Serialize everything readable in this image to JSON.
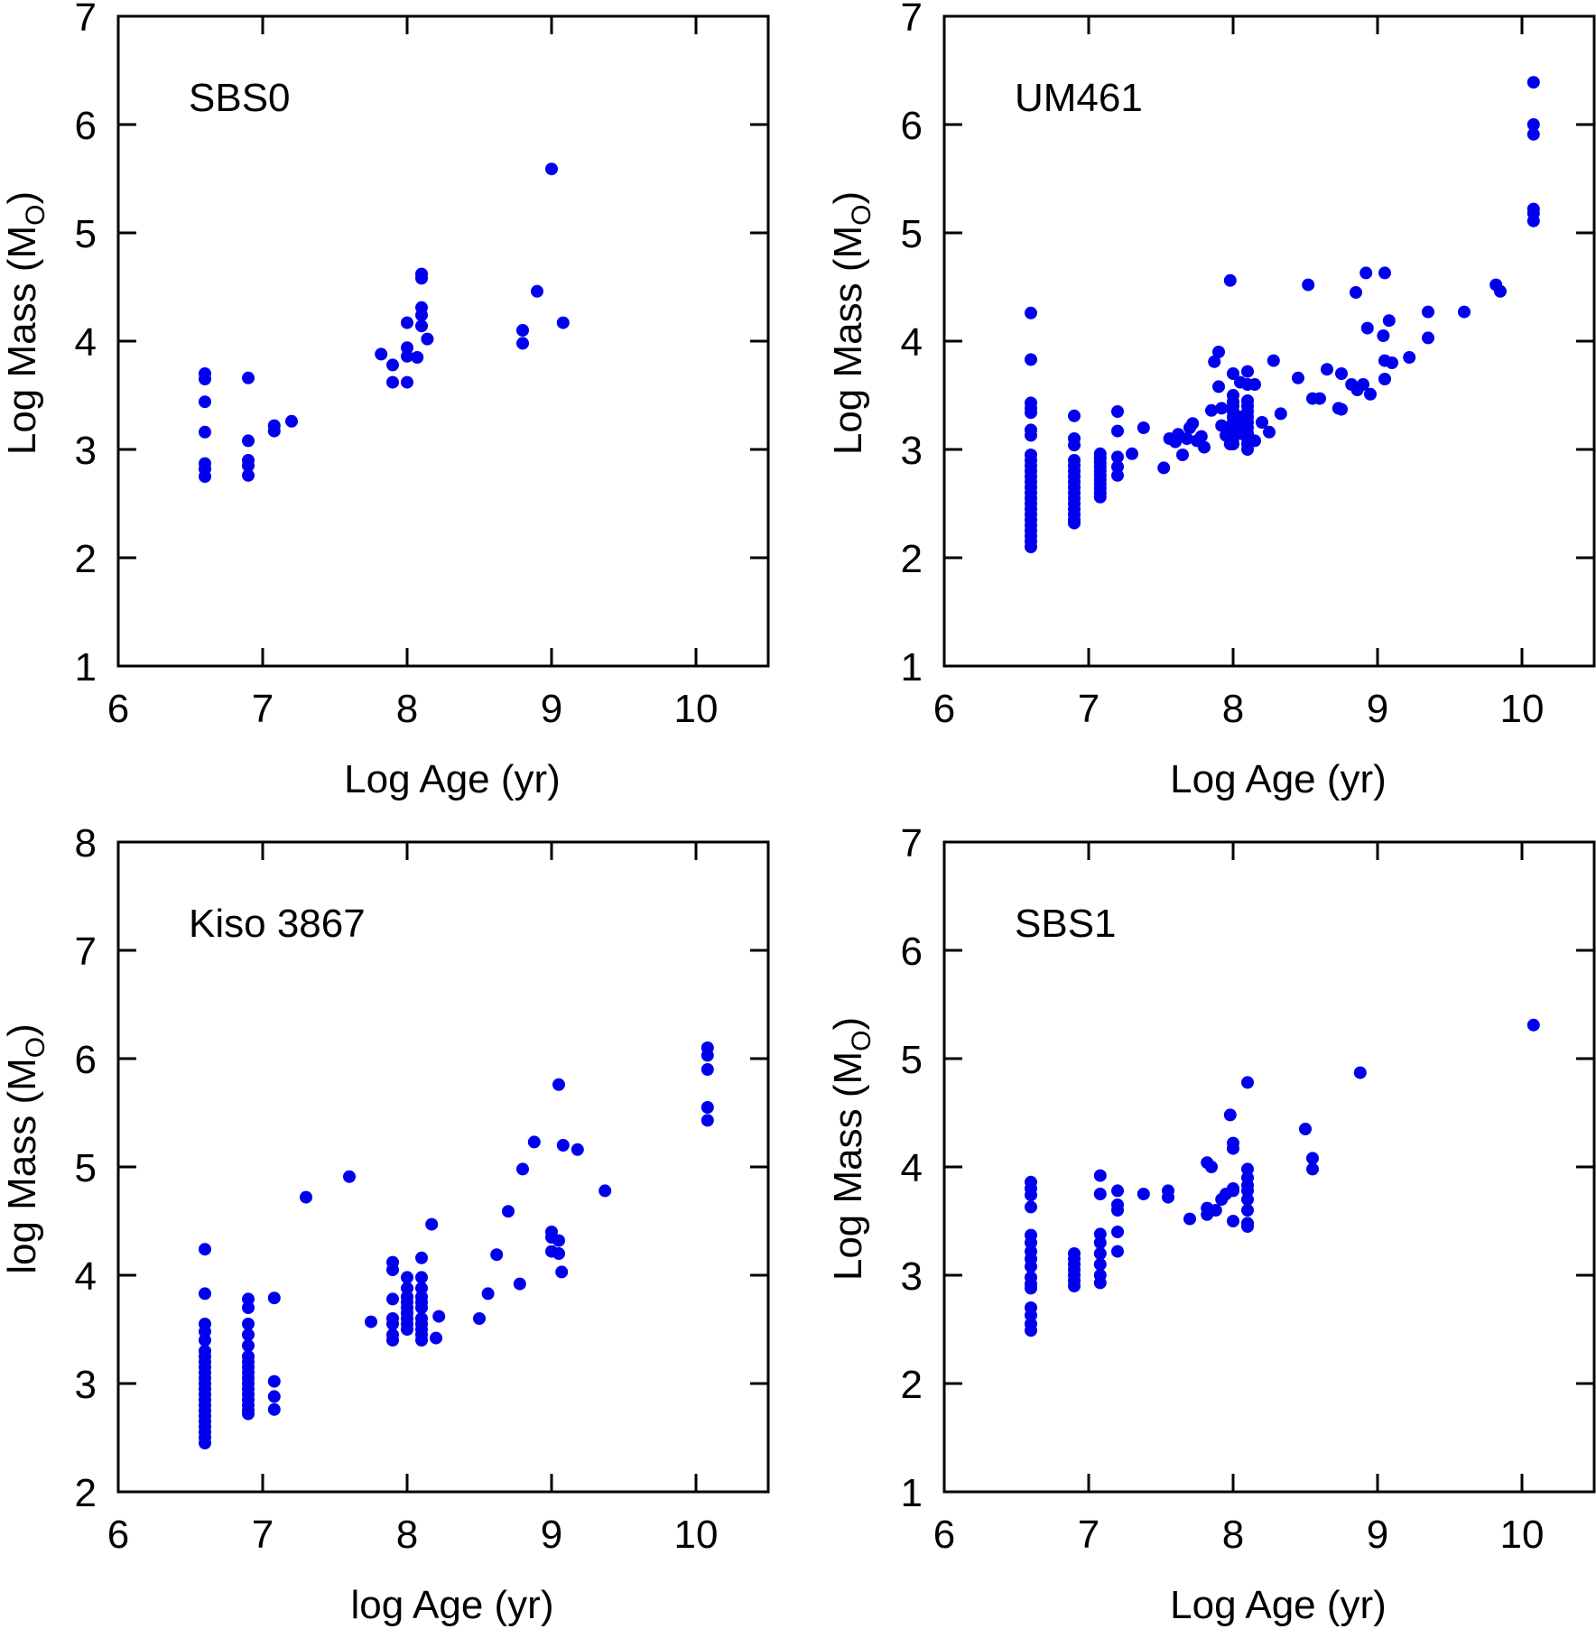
{
  "colors": {
    "points": "#0000ee",
    "axes": "#000000",
    "background": "#ffffff"
  },
  "chart_data": [
    {
      "type": "scatter",
      "panel_label": "SBS0",
      "xlabel": "Log Age (yr)",
      "ylabel_main": "Log Mass (M",
      "ylabel_sub": "O",
      "ylabel_close": ")",
      "xlim": [
        6,
        10.5
      ],
      "ylim": [
        1,
        7
      ],
      "xticks": [
        6,
        7,
        8,
        9,
        10
      ],
      "yticks": [
        1,
        2,
        3,
        4,
        5,
        6,
        7
      ],
      "grid": false,
      "points": [
        [
          6.6,
          3.7
        ],
        [
          6.6,
          3.65
        ],
        [
          6.6,
          3.44
        ],
        [
          6.6,
          3.16
        ],
        [
          6.6,
          2.87
        ],
        [
          6.6,
          2.82
        ],
        [
          6.6,
          2.75
        ],
        [
          6.9,
          3.66
        ],
        [
          6.9,
          3.08
        ],
        [
          6.9,
          2.9
        ],
        [
          6.9,
          2.85
        ],
        [
          6.9,
          2.76
        ],
        [
          7.08,
          3.22
        ],
        [
          7.08,
          3.17
        ],
        [
          7.2,
          3.26
        ],
        [
          7.82,
          3.88
        ],
        [
          7.9,
          3.78
        ],
        [
          7.9,
          3.62
        ],
        [
          8.0,
          3.62
        ],
        [
          8.0,
          4.17
        ],
        [
          8.0,
          3.94
        ],
        [
          8.0,
          3.86
        ],
        [
          8.07,
          3.85
        ],
        [
          8.1,
          4.62
        ],
        [
          8.1,
          4.58
        ],
        [
          8.1,
          4.31
        ],
        [
          8.1,
          4.24
        ],
        [
          8.1,
          4.14
        ],
        [
          8.14,
          4.02
        ],
        [
          8.8,
          4.1
        ],
        [
          8.8,
          3.98
        ],
        [
          8.9,
          4.46
        ],
        [
          9.0,
          5.59
        ],
        [
          9.08,
          4.17
        ]
      ]
    },
    {
      "type": "scatter",
      "panel_label": "UM461",
      "xlabel": "Log Age (yr)",
      "ylabel_main": "Log Mass (M",
      "ylabel_sub": "O",
      "ylabel_close": ")",
      "xlim": [
        6,
        10.5
      ],
      "ylim": [
        1,
        7
      ],
      "xticks": [
        6,
        7,
        8,
        9,
        10
      ],
      "yticks": [
        1,
        2,
        3,
        4,
        5,
        6,
        7
      ],
      "grid": false,
      "points": [
        [
          6.6,
          4.26
        ],
        [
          6.6,
          3.83
        ],
        [
          6.6,
          3.43
        ],
        [
          6.6,
          3.38
        ],
        [
          6.6,
          3.34
        ],
        [
          6.6,
          3.18
        ],
        [
          6.6,
          3.13
        ],
        [
          6.6,
          2.95
        ],
        [
          6.6,
          2.9
        ],
        [
          6.6,
          2.85
        ],
        [
          6.6,
          2.8
        ],
        [
          6.6,
          2.75
        ],
        [
          6.6,
          2.7
        ],
        [
          6.6,
          2.65
        ],
        [
          6.6,
          2.6
        ],
        [
          6.6,
          2.55
        ],
        [
          6.6,
          2.5
        ],
        [
          6.6,
          2.45
        ],
        [
          6.6,
          2.4
        ],
        [
          6.6,
          2.35
        ],
        [
          6.6,
          2.3
        ],
        [
          6.6,
          2.25
        ],
        [
          6.6,
          2.2
        ],
        [
          6.6,
          2.15
        ],
        [
          6.6,
          2.1
        ],
        [
          6.9,
          3.31
        ],
        [
          6.9,
          3.1
        ],
        [
          6.9,
          3.04
        ],
        [
          6.9,
          2.9
        ],
        [
          6.9,
          2.85
        ],
        [
          6.9,
          2.8
        ],
        [
          6.9,
          2.75
        ],
        [
          6.9,
          2.7
        ],
        [
          6.9,
          2.65
        ],
        [
          6.9,
          2.6
        ],
        [
          6.9,
          2.55
        ],
        [
          6.9,
          2.5
        ],
        [
          6.9,
          2.45
        ],
        [
          6.9,
          2.4
        ],
        [
          6.9,
          2.35
        ],
        [
          6.9,
          2.32
        ],
        [
          7.08,
          2.96
        ],
        [
          7.08,
          2.92
        ],
        [
          7.08,
          2.88
        ],
        [
          7.08,
          2.84
        ],
        [
          7.08,
          2.8
        ],
        [
          7.08,
          2.76
        ],
        [
          7.08,
          2.72
        ],
        [
          7.08,
          2.68
        ],
        [
          7.08,
          2.64
        ],
        [
          7.08,
          2.6
        ],
        [
          7.08,
          2.56
        ],
        [
          7.2,
          3.35
        ],
        [
          7.2,
          3.17
        ],
        [
          7.2,
          2.93
        ],
        [
          7.2,
          2.84
        ],
        [
          7.2,
          2.76
        ],
        [
          7.3,
          2.96
        ],
        [
          7.38,
          3.2
        ],
        [
          7.52,
          2.83
        ],
        [
          7.56,
          3.1
        ],
        [
          7.6,
          3.07
        ],
        [
          7.62,
          3.14
        ],
        [
          7.65,
          2.95
        ],
        [
          7.68,
          3.1
        ],
        [
          7.7,
          3.2
        ],
        [
          7.72,
          3.24
        ],
        [
          7.75,
          3.08
        ],
        [
          7.78,
          3.12
        ],
        [
          7.8,
          3.02
        ],
        [
          7.85,
          3.36
        ],
        [
          7.87,
          3.81
        ],
        [
          7.9,
          3.9
        ],
        [
          7.9,
          3.58
        ],
        [
          7.92,
          3.38
        ],
        [
          7.92,
          3.22
        ],
        [
          7.95,
          3.2
        ],
        [
          7.95,
          3.13
        ],
        [
          7.98,
          4.56
        ],
        [
          7.98,
          3.05
        ],
        [
          8.0,
          3.7
        ],
        [
          8.0,
          3.5
        ],
        [
          8.0,
          3.44
        ],
        [
          8.0,
          3.4
        ],
        [
          8.0,
          3.35
        ],
        [
          8.0,
          3.3
        ],
        [
          8.0,
          3.25
        ],
        [
          8.0,
          3.2
        ],
        [
          8.0,
          3.15
        ],
        [
          8.0,
          3.1
        ],
        [
          8.0,
          3.05
        ],
        [
          8.05,
          3.62
        ],
        [
          8.05,
          3.3
        ],
        [
          8.05,
          3.24
        ],
        [
          8.07,
          3.14
        ],
        [
          8.1,
          3.72
        ],
        [
          8.1,
          3.6
        ],
        [
          8.1,
          3.45
        ],
        [
          8.1,
          3.4
        ],
        [
          8.1,
          3.35
        ],
        [
          8.1,
          3.3
        ],
        [
          8.1,
          3.25
        ],
        [
          8.1,
          3.2
        ],
        [
          8.1,
          3.15
        ],
        [
          8.1,
          3.1
        ],
        [
          8.1,
          3.05
        ],
        [
          8.1,
          3.0
        ],
        [
          8.15,
          3.6
        ],
        [
          8.15,
          3.08
        ],
        [
          8.2,
          3.25
        ],
        [
          8.25,
          3.16
        ],
        [
          8.28,
          3.82
        ],
        [
          8.33,
          3.33
        ],
        [
          8.45,
          3.66
        ],
        [
          8.52,
          4.52
        ],
        [
          8.55,
          3.47
        ],
        [
          8.6,
          3.47
        ],
        [
          8.65,
          3.74
        ],
        [
          8.73,
          3.38
        ],
        [
          8.75,
          3.37
        ],
        [
          8.75,
          3.7
        ],
        [
          8.82,
          3.6
        ],
        [
          8.85,
          4.45
        ],
        [
          8.86,
          3.55
        ],
        [
          8.9,
          3.6
        ],
        [
          8.92,
          4.63
        ],
        [
          8.93,
          4.12
        ],
        [
          8.95,
          3.51
        ],
        [
          9.05,
          4.63
        ],
        [
          9.04,
          4.05
        ],
        [
          9.05,
          3.82
        ],
        [
          9.05,
          3.65
        ],
        [
          9.08,
          4.19
        ],
        [
          9.1,
          3.8
        ],
        [
          9.22,
          3.85
        ],
        [
          9.35,
          4.27
        ],
        [
          9.35,
          4.03
        ],
        [
          9.6,
          4.27
        ],
        [
          9.82,
          4.52
        ],
        [
          9.85,
          4.46
        ],
        [
          10.08,
          6.39
        ],
        [
          10.08,
          6.0
        ],
        [
          10.08,
          5.91
        ],
        [
          10.08,
          5.22
        ],
        [
          10.08,
          5.18
        ],
        [
          10.08,
          5.11
        ]
      ]
    },
    {
      "type": "scatter",
      "panel_label": "Kiso 3867",
      "xlabel": "log Age (yr)",
      "ylabel_main": "log Mass (M",
      "ylabel_sub": "O",
      "ylabel_close": ")",
      "xlim": [
        6,
        10.5
      ],
      "ylim": [
        2,
        8
      ],
      "xticks": [
        6,
        7,
        8,
        9,
        10
      ],
      "yticks": [
        2,
        3,
        4,
        5,
        6,
        7,
        8
      ],
      "grid": false,
      "points": [
        [
          6.6,
          4.24
        ],
        [
          6.6,
          3.83
        ],
        [
          6.6,
          3.55
        ],
        [
          6.6,
          3.48
        ],
        [
          6.6,
          3.4
        ],
        [
          6.6,
          3.3
        ],
        [
          6.6,
          3.25
        ],
        [
          6.6,
          3.2
        ],
        [
          6.6,
          3.15
        ],
        [
          6.6,
          3.1
        ],
        [
          6.6,
          3.05
        ],
        [
          6.6,
          3.0
        ],
        [
          6.6,
          2.95
        ],
        [
          6.6,
          2.9
        ],
        [
          6.6,
          2.85
        ],
        [
          6.6,
          2.8
        ],
        [
          6.6,
          2.75
        ],
        [
          6.6,
          2.7
        ],
        [
          6.6,
          2.65
        ],
        [
          6.6,
          2.6
        ],
        [
          6.6,
          2.55
        ],
        [
          6.6,
          2.5
        ],
        [
          6.6,
          2.45
        ],
        [
          6.9,
          3.78
        ],
        [
          6.9,
          3.7
        ],
        [
          6.9,
          3.55
        ],
        [
          6.9,
          3.45
        ],
        [
          6.9,
          3.35
        ],
        [
          6.9,
          3.25
        ],
        [
          6.9,
          3.2
        ],
        [
          6.9,
          3.15
        ],
        [
          6.9,
          3.1
        ],
        [
          6.9,
          3.05
        ],
        [
          6.9,
          3.0
        ],
        [
          6.9,
          2.95
        ],
        [
          6.9,
          2.9
        ],
        [
          6.9,
          2.85
        ],
        [
          6.9,
          2.8
        ],
        [
          6.9,
          2.75
        ],
        [
          6.9,
          2.72
        ],
        [
          7.08,
          3.79
        ],
        [
          7.08,
          3.02
        ],
        [
          7.08,
          2.88
        ],
        [
          7.08,
          2.76
        ],
        [
          7.3,
          4.72
        ],
        [
          7.6,
          4.91
        ],
        [
          7.75,
          3.57
        ],
        [
          7.9,
          4.12
        ],
        [
          7.9,
          4.05
        ],
        [
          7.9,
          3.78
        ],
        [
          7.9,
          3.6
        ],
        [
          7.9,
          3.55
        ],
        [
          7.9,
          3.45
        ],
        [
          7.9,
          3.4
        ],
        [
          8.0,
          3.98
        ],
        [
          8.0,
          3.88
        ],
        [
          8.0,
          3.8
        ],
        [
          8.0,
          3.75
        ],
        [
          8.0,
          3.7
        ],
        [
          8.0,
          3.65
        ],
        [
          8.0,
          3.6
        ],
        [
          8.0,
          3.55
        ],
        [
          8.0,
          3.5
        ],
        [
          8.1,
          4.16
        ],
        [
          8.1,
          3.98
        ],
        [
          8.1,
          3.88
        ],
        [
          8.1,
          3.8
        ],
        [
          8.1,
          3.75
        ],
        [
          8.1,
          3.7
        ],
        [
          8.1,
          3.6
        ],
        [
          8.1,
          3.55
        ],
        [
          8.1,
          3.5
        ],
        [
          8.1,
          3.45
        ],
        [
          8.1,
          3.4
        ],
        [
          8.17,
          4.47
        ],
        [
          8.2,
          3.42
        ],
        [
          8.22,
          3.62
        ],
        [
          8.5,
          3.6
        ],
        [
          8.56,
          3.83
        ],
        [
          8.62,
          4.19
        ],
        [
          8.7,
          4.59
        ],
        [
          8.78,
          3.92
        ],
        [
          8.8,
          4.98
        ],
        [
          8.88,
          5.23
        ],
        [
          9.0,
          4.4
        ],
        [
          9.0,
          4.35
        ],
        [
          9.0,
          4.22
        ],
        [
          9.05,
          5.76
        ],
        [
          9.05,
          4.32
        ],
        [
          9.05,
          4.2
        ],
        [
          9.07,
          4.03
        ],
        [
          9.08,
          5.2
        ],
        [
          9.18,
          5.16
        ],
        [
          9.37,
          4.78
        ],
        [
          10.08,
          6.1
        ],
        [
          10.08,
          6.03
        ],
        [
          10.08,
          5.9
        ],
        [
          10.08,
          5.55
        ],
        [
          10.08,
          5.43
        ]
      ]
    },
    {
      "type": "scatter",
      "panel_label": "SBS1",
      "xlabel": "Log Age (yr)",
      "ylabel_main": "Log Mass (M",
      "ylabel_sub": "O",
      "ylabel_close": ")",
      "xlim": [
        6,
        10.5
      ],
      "ylim": [
        1,
        7
      ],
      "xticks": [
        6,
        7,
        8,
        9,
        10
      ],
      "yticks": [
        1,
        2,
        3,
        4,
        5,
        6,
        7
      ],
      "grid": false,
      "points": [
        [
          6.6,
          3.86
        ],
        [
          6.6,
          3.8
        ],
        [
          6.6,
          3.74
        ],
        [
          6.6,
          3.63
        ],
        [
          6.6,
          3.37
        ],
        [
          6.6,
          3.3
        ],
        [
          6.6,
          3.22
        ],
        [
          6.6,
          3.15
        ],
        [
          6.6,
          3.08
        ],
        [
          6.6,
          2.98
        ],
        [
          6.6,
          2.92
        ],
        [
          6.6,
          2.88
        ],
        [
          6.6,
          2.7
        ],
        [
          6.6,
          2.63
        ],
        [
          6.6,
          2.55
        ],
        [
          6.6,
          2.49
        ],
        [
          6.9,
          3.2
        ],
        [
          6.9,
          3.15
        ],
        [
          6.9,
          3.1
        ],
        [
          6.9,
          3.05
        ],
        [
          6.9,
          3.0
        ],
        [
          6.9,
          2.95
        ],
        [
          6.9,
          2.9
        ],
        [
          7.08,
          3.92
        ],
        [
          7.08,
          3.75
        ],
        [
          7.08,
          3.38
        ],
        [
          7.08,
          3.3
        ],
        [
          7.08,
          3.2
        ],
        [
          7.08,
          3.1
        ],
        [
          7.08,
          3.0
        ],
        [
          7.08,
          2.93
        ],
        [
          7.2,
          3.78
        ],
        [
          7.2,
          3.65
        ],
        [
          7.2,
          3.6
        ],
        [
          7.2,
          3.4
        ],
        [
          7.2,
          3.22
        ],
        [
          7.38,
          3.75
        ],
        [
          7.55,
          3.78
        ],
        [
          7.55,
          3.72
        ],
        [
          7.7,
          3.52
        ],
        [
          7.82,
          4.04
        ],
        [
          7.82,
          3.62
        ],
        [
          7.82,
          3.56
        ],
        [
          7.85,
          4.0
        ],
        [
          7.88,
          3.6
        ],
        [
          7.92,
          3.7
        ],
        [
          7.95,
          3.75
        ],
        [
          7.98,
          4.48
        ],
        [
          8.0,
          4.22
        ],
        [
          8.0,
          4.17
        ],
        [
          8.0,
          3.8
        ],
        [
          8.0,
          3.78
        ],
        [
          8.0,
          3.5
        ],
        [
          8.1,
          4.78
        ],
        [
          8.1,
          3.98
        ],
        [
          8.1,
          3.9
        ],
        [
          8.1,
          3.83
        ],
        [
          8.1,
          3.78
        ],
        [
          8.1,
          3.7
        ],
        [
          8.1,
          3.6
        ],
        [
          8.1,
          3.48
        ],
        [
          8.1,
          3.45
        ],
        [
          8.5,
          4.35
        ],
        [
          8.55,
          4.08
        ],
        [
          8.55,
          3.98
        ],
        [
          8.88,
          4.87
        ],
        [
          10.08,
          5.31
        ]
      ]
    }
  ]
}
